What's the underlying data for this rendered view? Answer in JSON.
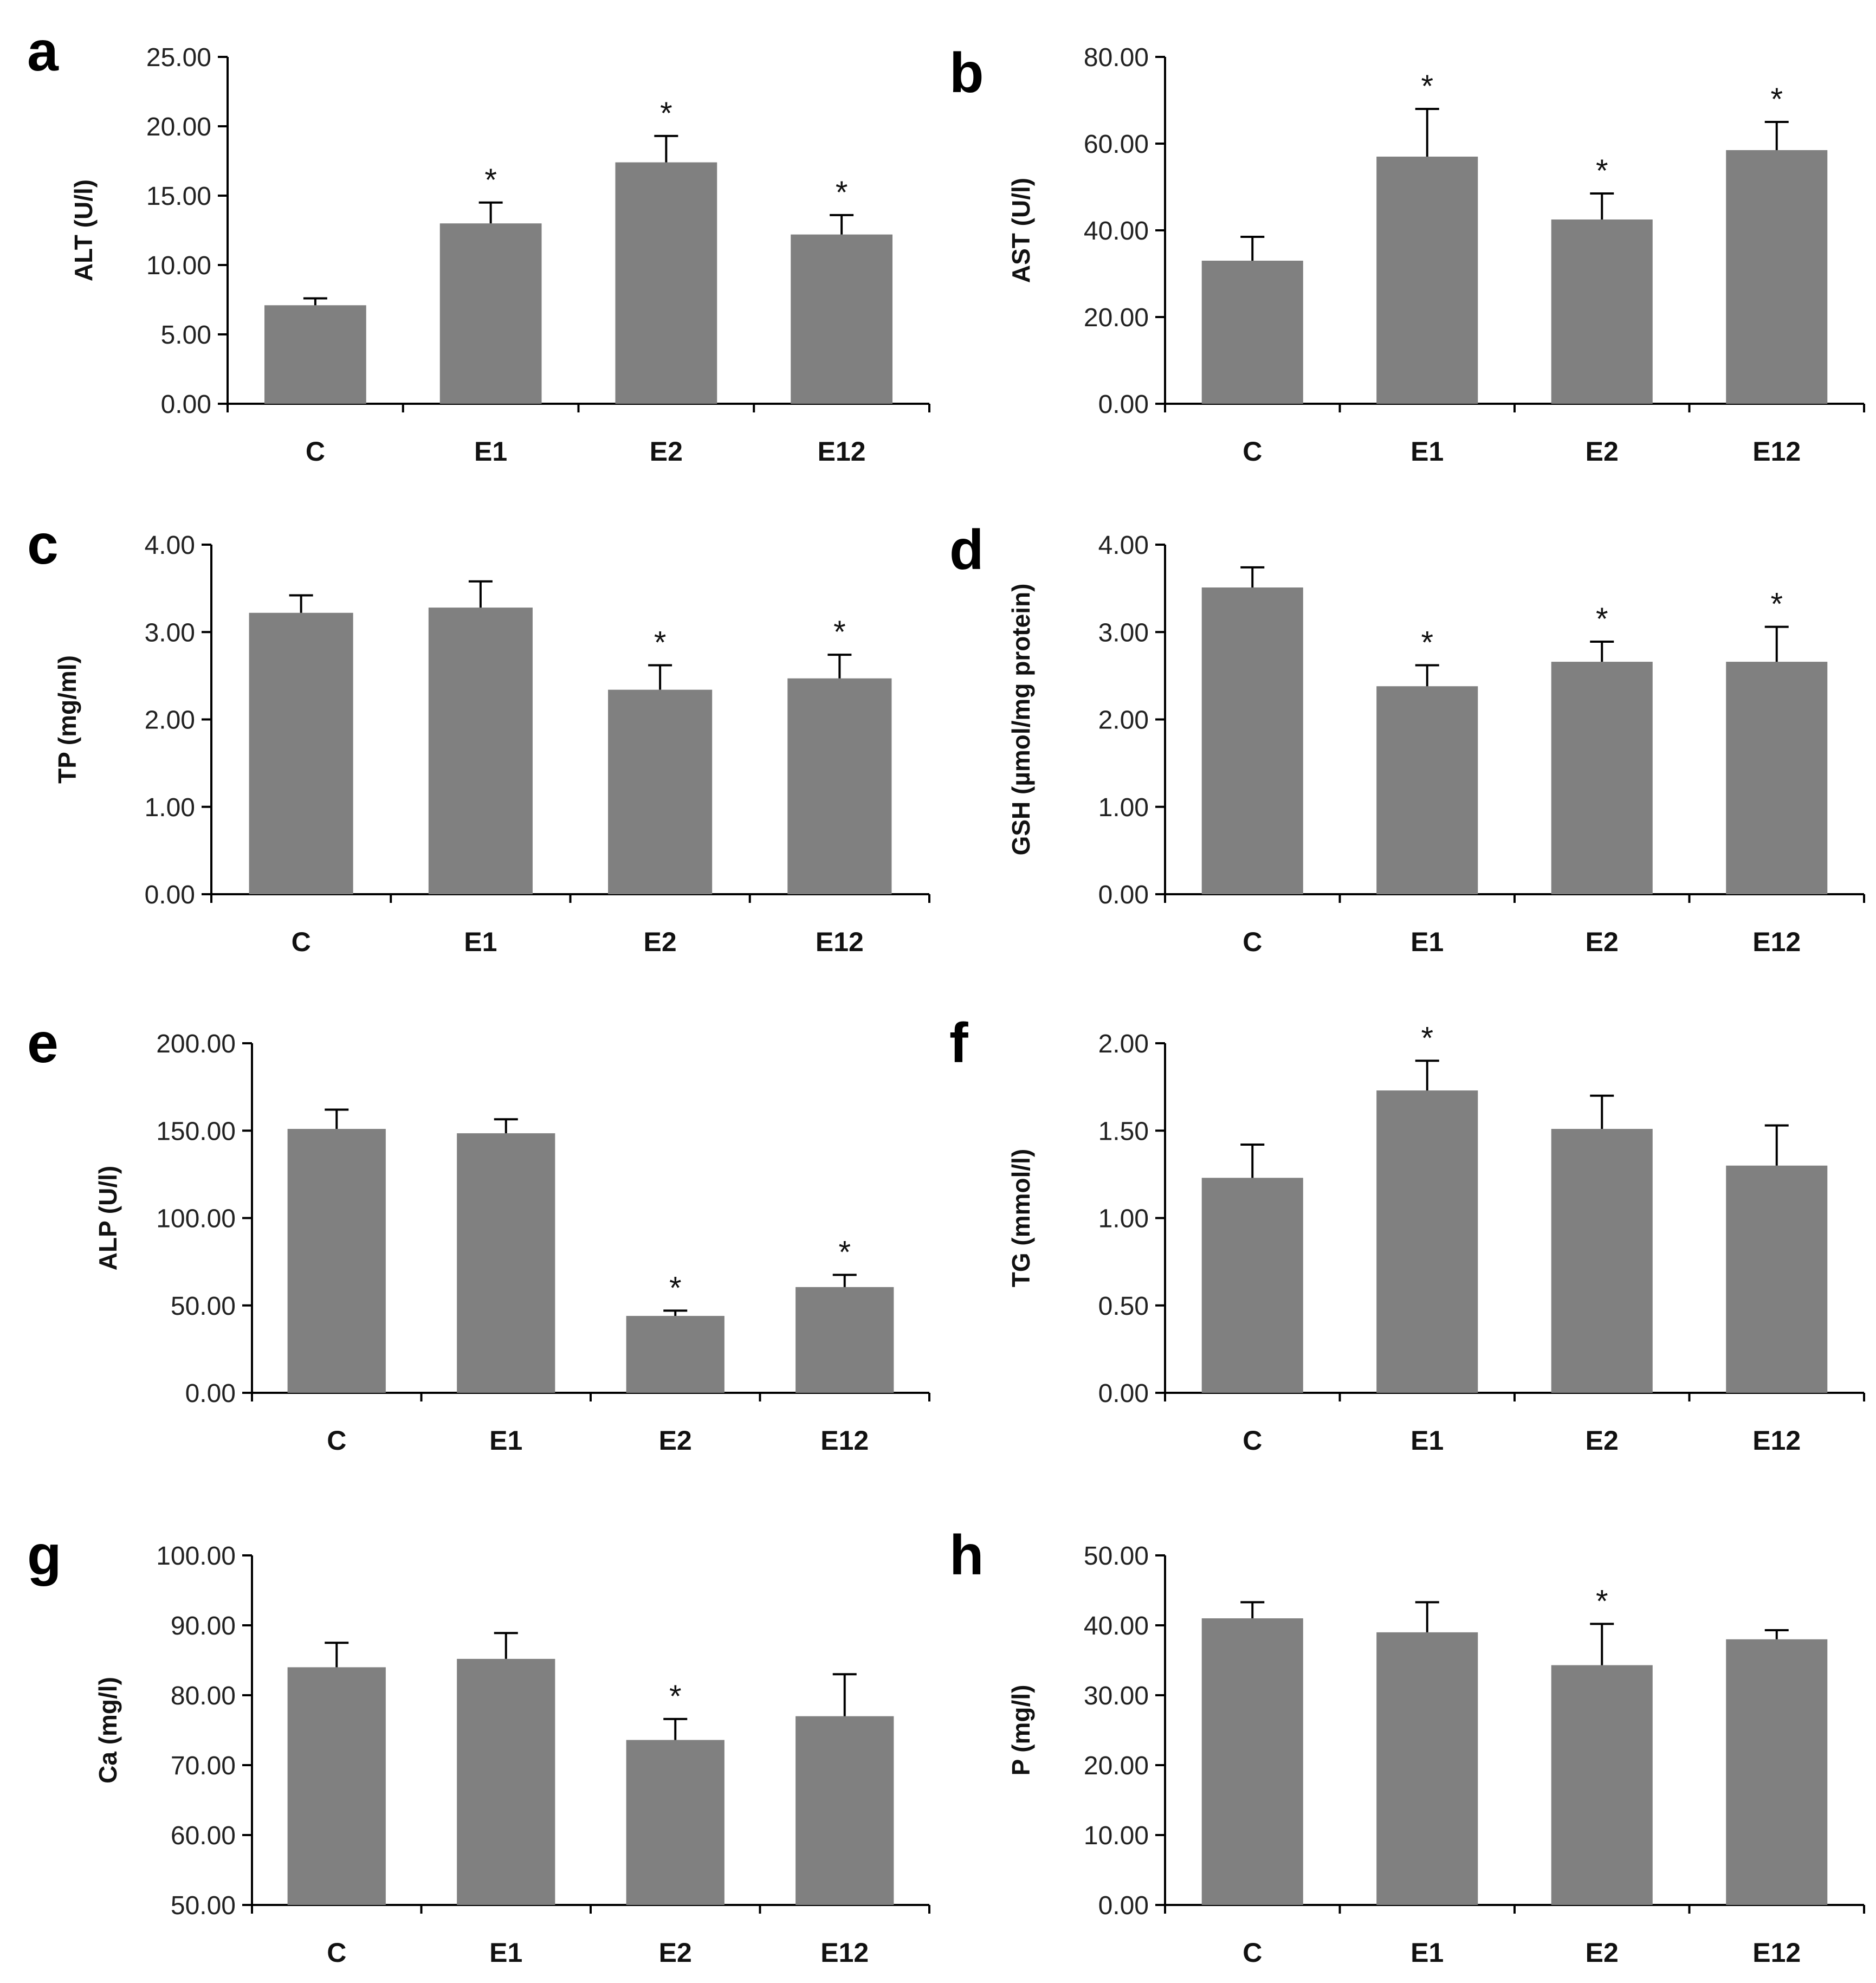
{
  "figure_layout": "4 rows x 2 columns of bar charts",
  "colors": {
    "bar": "#808080",
    "axis": "#000000",
    "error": "#000000"
  },
  "chart_data": [
    {
      "panel": "a",
      "type": "bar",
      "categories": [
        "C",
        "E1",
        "E2",
        "E12"
      ],
      "values": [
        7.1,
        13.0,
        17.4,
        12.2
      ],
      "errors": [
        0.5,
        1.5,
        1.9,
        1.4
      ],
      "significant": [
        false,
        true,
        true,
        true
      ],
      "ylabel": "ALT (U/l)",
      "ylim": [
        0,
        25
      ],
      "yticks": [
        "0.00",
        "5.00",
        "10.00",
        "15.00",
        "20.00",
        "25.00"
      ],
      "significance_marker": "*"
    },
    {
      "panel": "b",
      "type": "bar",
      "categories": [
        "C",
        "E1",
        "E2",
        "E12"
      ],
      "values": [
        33.0,
        57.0,
        42.5,
        58.5
      ],
      "errors": [
        5.5,
        11.0,
        6.0,
        6.5
      ],
      "significant": [
        false,
        true,
        true,
        true
      ],
      "ylabel": "AST (U/l)",
      "ylim": [
        0,
        80
      ],
      "yticks": [
        "0.00",
        "20.00",
        "40.00",
        "60.00",
        "80.00"
      ],
      "significance_marker": "*"
    },
    {
      "panel": "c",
      "type": "bar",
      "categories": [
        "C",
        "E1",
        "E2",
        "E12"
      ],
      "values": [
        3.22,
        3.28,
        2.34,
        2.47
      ],
      "errors": [
        0.2,
        0.3,
        0.28,
        0.27
      ],
      "significant": [
        false,
        false,
        true,
        true
      ],
      "ylabel": "TP (mg/ml)",
      "ylim": [
        0,
        4
      ],
      "yticks": [
        "0.00",
        "1.00",
        "2.00",
        "3.00",
        "4.00"
      ],
      "significance_marker": "*"
    },
    {
      "panel": "d",
      "type": "bar",
      "categories": [
        "C",
        "E1",
        "E2",
        "E12"
      ],
      "values": [
        3.51,
        2.38,
        2.66,
        2.66
      ],
      "errors": [
        0.23,
        0.24,
        0.23,
        0.4
      ],
      "significant": [
        false,
        true,
        true,
        true
      ],
      "ylabel": "GSH (µmol/mg protein)",
      "ylim": [
        0,
        4
      ],
      "yticks": [
        "0.00",
        "1.00",
        "2.00",
        "3.00",
        "4.00"
      ],
      "significance_marker": "*"
    },
    {
      "panel": "e",
      "type": "bar",
      "categories": [
        "C",
        "E1",
        "E2",
        "E12"
      ],
      "values": [
        151.0,
        148.5,
        44.0,
        60.5
      ],
      "errors": [
        11.0,
        8.0,
        3.0,
        7.0
      ],
      "significant": [
        false,
        false,
        true,
        true
      ],
      "ylabel": "ALP (U/l)",
      "ylim": [
        0,
        200
      ],
      "yticks": [
        "0.00",
        "50.00",
        "100.00",
        "150.00",
        "200.00"
      ],
      "significance_marker": "*"
    },
    {
      "panel": "f",
      "type": "bar",
      "categories": [
        "C",
        "E1",
        "E2",
        "E12"
      ],
      "values": [
        1.23,
        1.73,
        1.51,
        1.3
      ],
      "errors": [
        0.19,
        0.17,
        0.19,
        0.23
      ],
      "significant": [
        false,
        true,
        false,
        false
      ],
      "ylabel": "TG (mmol/l)",
      "ylim": [
        0,
        2
      ],
      "yticks": [
        "0.00",
        "0.50",
        "1.00",
        "1.50",
        "2.00"
      ],
      "significance_marker": "*"
    },
    {
      "panel": "g",
      "type": "bar",
      "categories": [
        "C",
        "E1",
        "E2",
        "E12"
      ],
      "values": [
        84.0,
        85.2,
        73.6,
        77.0
      ],
      "errors": [
        3.5,
        3.7,
        3.0,
        6.0
      ],
      "significant": [
        false,
        false,
        true,
        false
      ],
      "ylabel": "Ca (mg/l)",
      "ylim": [
        50,
        100
      ],
      "yticks": [
        "50.00",
        "60.00",
        "70.00",
        "80.00",
        "90.00",
        "100.00"
      ],
      "significance_marker": "*"
    },
    {
      "panel": "h",
      "type": "bar",
      "categories": [
        "C",
        "E1",
        "E2",
        "E12"
      ],
      "values": [
        41.0,
        39.0,
        34.3,
        38.0
      ],
      "errors": [
        2.3,
        4.3,
        5.9,
        1.3
      ],
      "significant": [
        false,
        false,
        true,
        false
      ],
      "ylabel": "P (mg/l)",
      "ylim": [
        0,
        50
      ],
      "yticks": [
        "0.00",
        "10.00",
        "20.00",
        "30.00",
        "40.00",
        "50.00"
      ],
      "significance_marker": "*"
    }
  ]
}
